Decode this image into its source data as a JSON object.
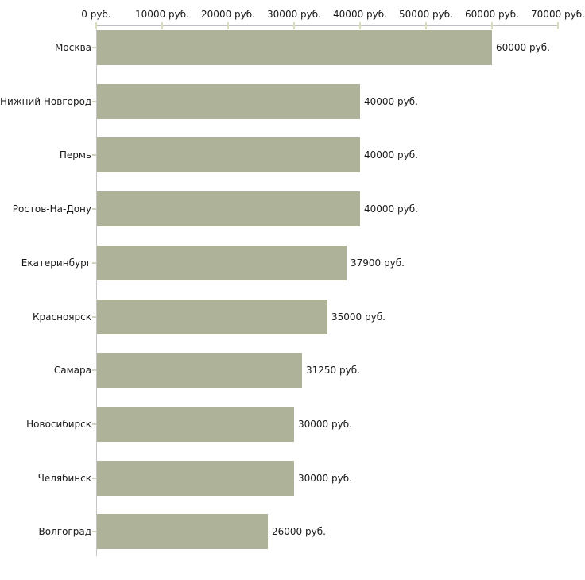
{
  "chart_data": {
    "type": "bar",
    "orientation": "horizontal",
    "title": "",
    "xlabel": "",
    "ylabel": "",
    "xlim": [
      0,
      70000
    ],
    "grid": false,
    "legend": false,
    "unit": "руб.",
    "categories": [
      "Москва",
      "Нижний Новгород",
      "Пермь",
      "Ростов-На-Дону",
      "Екатеринбург",
      "Красноярск",
      "Самара",
      "Новосибирск",
      "Челябинск",
      "Волгоград"
    ],
    "values": [
      60000,
      40000,
      40000,
      40000,
      37900,
      35000,
      31250,
      30000,
      30000,
      26000
    ],
    "value_labels": [
      "60000 руб.",
      "40000 руб.",
      "40000 руб.",
      "40000 руб.",
      "37900 руб.",
      "35000 руб.",
      "31250 руб.",
      "30000 руб.",
      "30000 руб.",
      "26000 руб."
    ],
    "x_ticks": [
      0,
      10000,
      20000,
      30000,
      40000,
      50000,
      60000,
      70000
    ],
    "x_tick_labels": [
      "0 руб.",
      "10000 руб.",
      "20000 руб.",
      "30000 руб.",
      "40000 руб.",
      "50000 руб.",
      "60000 руб.",
      "70000 руб."
    ],
    "colors": {
      "bar": "#adb299",
      "axis": "#bfbfbf",
      "tick": "#d9dcbe",
      "text": "#1a1a1a",
      "background": "#ffffff"
    }
  }
}
